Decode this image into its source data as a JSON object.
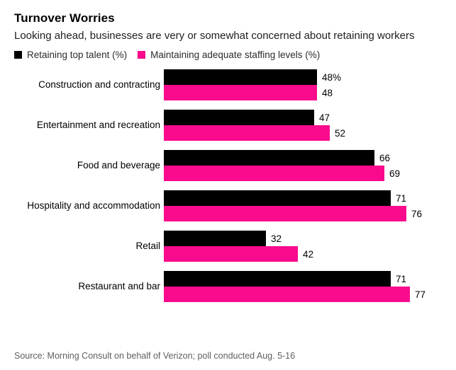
{
  "chart_data": {
    "type": "bar",
    "orientation": "horizontal",
    "title": "Turnover Worries",
    "subtitle": "Looking ahead, businesses are very or somewhat concerned about retaining workers",
    "categories": [
      "Construction and contracting",
      "Entertainment and recreation",
      "Food and beverage",
      "Hospitality and accommodation",
      "Retail",
      "Restaurant and bar"
    ],
    "series": [
      {
        "name": "Retaining top talent (%)",
        "color": "#000000",
        "values": [
          48,
          47,
          66,
          71,
          32,
          71
        ],
        "labels": [
          "48%",
          "47",
          "66",
          "71",
          "32",
          "71"
        ]
      },
      {
        "name": "Maintaining adequate staffing levels (%)",
        "color": "#fa0a8c",
        "values": [
          48,
          52,
          69,
          76,
          42,
          77
        ],
        "labels": [
          "48",
          "52",
          "69",
          "76",
          "42",
          "77"
        ]
      }
    ],
    "xlim": [
      0,
      78
    ],
    "grid": false,
    "legend_position": "top-left",
    "source": "Source: Morning Consult on behalf of Verizon; poll conducted Aug. 5-16"
  }
}
